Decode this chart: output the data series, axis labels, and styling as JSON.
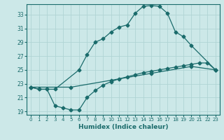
{
  "xlabel": "Humidex (Indice chaleur)",
  "xlim": [
    -0.5,
    23.5
  ],
  "ylim": [
    18.5,
    34.5
  ],
  "yticks": [
    19,
    21,
    23,
    25,
    27,
    29,
    31,
    33
  ],
  "xticks": [
    0,
    1,
    2,
    3,
    4,
    5,
    6,
    7,
    8,
    9,
    10,
    11,
    12,
    13,
    14,
    15,
    16,
    17,
    18,
    19,
    20,
    21,
    22,
    23
  ],
  "bg_color": "#cce8e8",
  "line_color": "#1a6b6b",
  "grid_color": "#b0d4d4",
  "line1_x": [
    0,
    1,
    2,
    3,
    6,
    7,
    8,
    9,
    10,
    11,
    12,
    13,
    14,
    15,
    16,
    17,
    18,
    19,
    20,
    23
  ],
  "line1_y": [
    22.5,
    22.2,
    22.2,
    22.2,
    25.0,
    27.2,
    29.0,
    29.5,
    30.5,
    31.2,
    31.5,
    33.2,
    34.2,
    34.3,
    34.2,
    33.2,
    30.5,
    29.8,
    28.5,
    25.0
  ],
  "line2_x": [
    0,
    5,
    10,
    15,
    20,
    23
  ],
  "line2_y": [
    22.5,
    22.5,
    23.5,
    24.5,
    25.5,
    25.0
  ],
  "line3_x": [
    0,
    1,
    2,
    3,
    4,
    5,
    6,
    7,
    8,
    9,
    10,
    11,
    12,
    13,
    14,
    15,
    16,
    17,
    18,
    19,
    20,
    21,
    22,
    23
  ],
  "line3_y": [
    22.5,
    22.2,
    22.2,
    19.8,
    19.5,
    19.2,
    19.2,
    21.0,
    22.0,
    22.8,
    23.3,
    23.7,
    24.0,
    24.3,
    24.6,
    24.8,
    25.0,
    25.2,
    25.4,
    25.6,
    25.8,
    26.0,
    26.0,
    25.0
  ]
}
